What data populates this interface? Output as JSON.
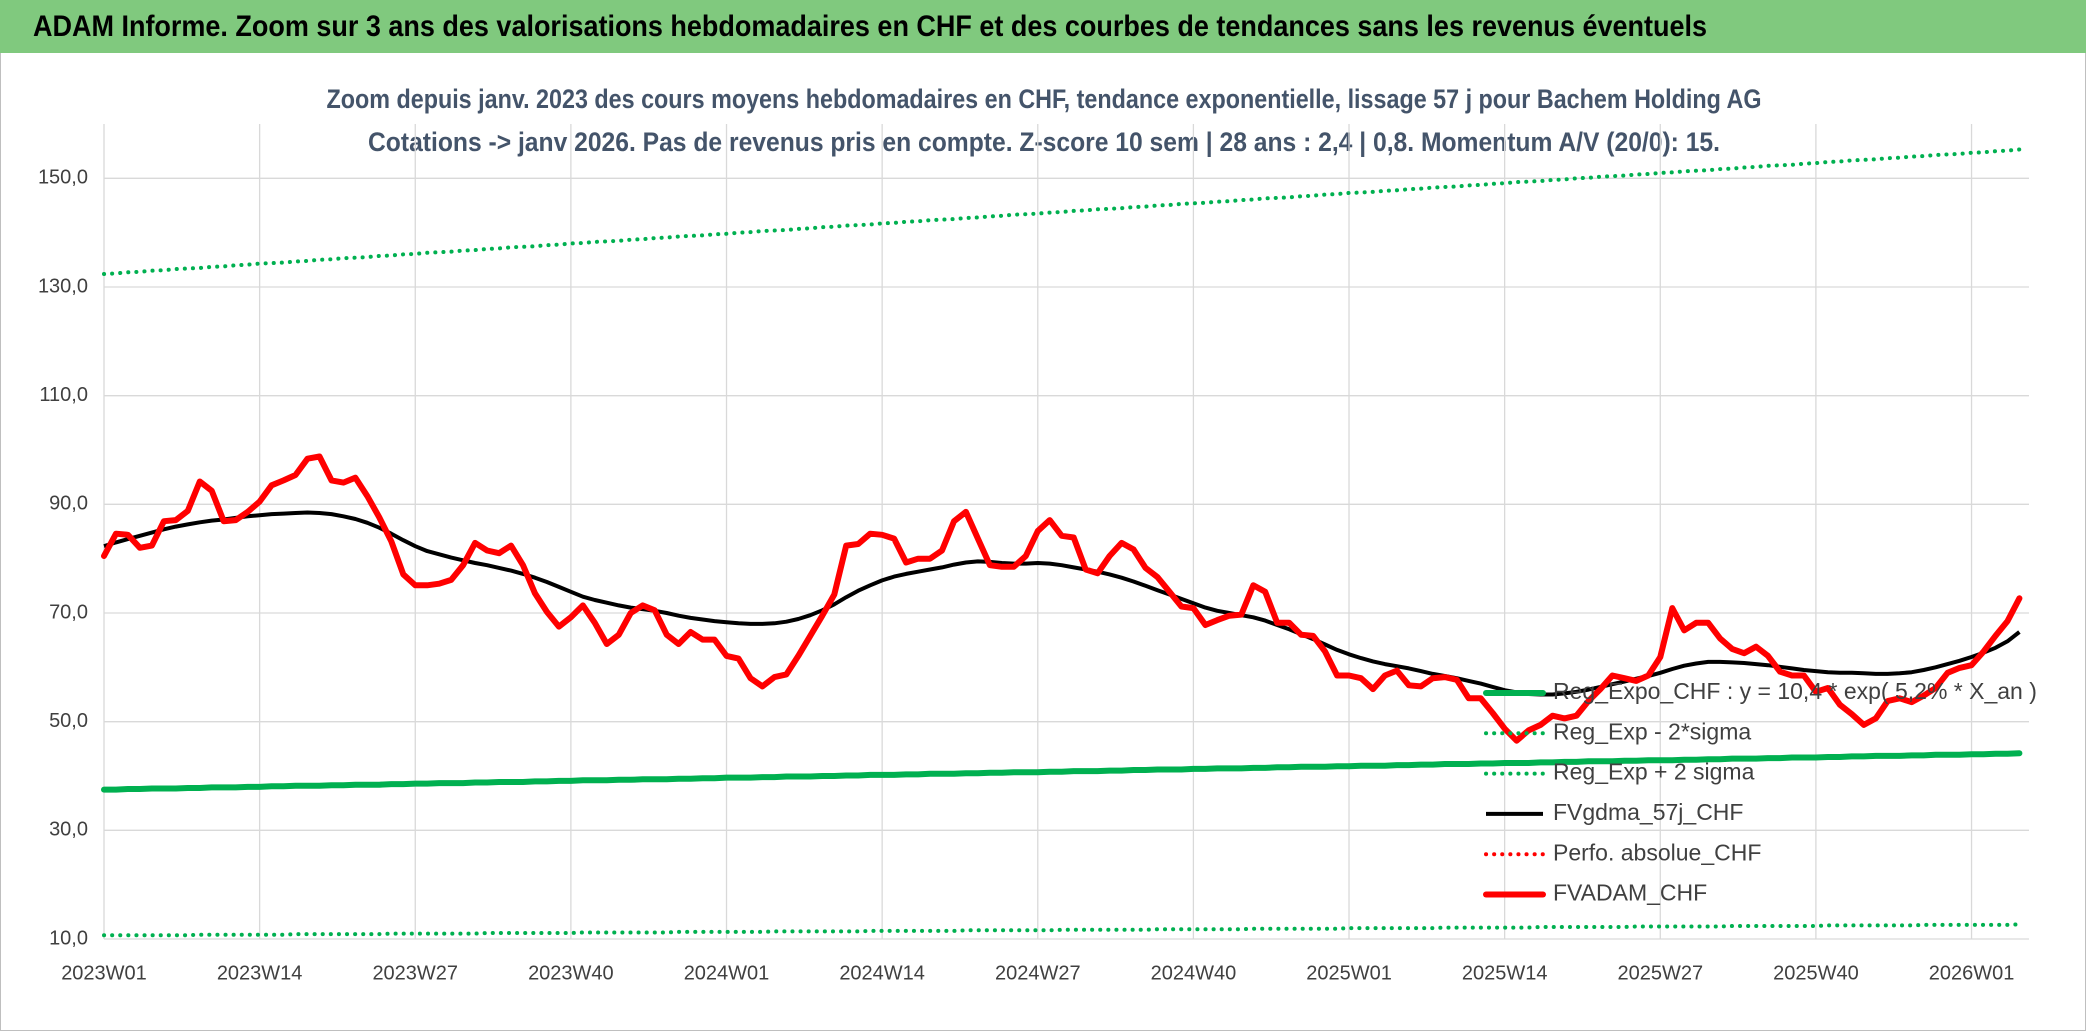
{
  "header": {
    "title": "ADAM Informe. Zoom sur 3 ans des valorisations hebdomadaires en CHF et des courbes de tendances sans les revenus éventuels"
  },
  "chart_data": {
    "type": "line",
    "title": [
      "Zoom depuis janv. 2023 des cours moyens hebdomadaires en CHF, tendance exponentielle, lissage 57 j pour Bachem Holding AG",
      "Cotations -> janv 2026. Pas de revenus pris en compte. Z-score 10 sem | 28 ans : 2,4 | 0,8. Momentum A/V (20/0): 15."
    ],
    "categories": [
      "2023W01",
      null,
      null,
      null,
      null,
      null,
      null,
      null,
      null,
      null,
      null,
      null,
      null,
      "2023W14",
      null,
      null,
      null,
      null,
      null,
      null,
      null,
      null,
      null,
      null,
      null,
      null,
      "2023W27",
      null,
      null,
      null,
      null,
      null,
      null,
      null,
      null,
      null,
      null,
      null,
      null,
      "2023W40",
      null,
      null,
      null,
      null,
      null,
      null,
      null,
      null,
      null,
      null,
      null,
      null,
      "2024W01",
      null,
      null,
      null,
      null,
      null,
      null,
      null,
      null,
      null,
      null,
      null,
      null,
      "2024W14",
      null,
      null,
      null,
      null,
      null,
      null,
      null,
      null,
      null,
      null,
      null,
      null,
      "2024W27",
      null,
      null,
      null,
      null,
      null,
      null,
      null,
      null,
      null,
      null,
      null,
      null,
      "2024W40",
      null,
      null,
      null,
      null,
      null,
      null,
      null,
      null,
      null,
      null,
      null,
      null,
      "2025W01",
      null,
      null,
      null,
      null,
      null,
      null,
      null,
      null,
      null,
      null,
      null,
      null,
      "2025W14",
      null,
      null,
      null,
      null,
      null,
      null,
      null,
      null,
      null,
      null,
      null,
      null,
      "2025W27",
      null,
      null,
      null,
      null,
      null,
      null,
      null,
      null,
      null,
      null,
      null,
      null,
      "2025W40",
      null,
      null,
      null,
      null,
      null,
      null,
      null,
      null,
      null,
      null,
      null,
      null,
      "2026W01",
      null,
      null,
      null,
      null
    ],
    "ylim": [
      10,
      160
    ],
    "yticks": [
      {
        "value": 10,
        "label": "10,0"
      },
      {
        "value": 30,
        "label": "30,0"
      },
      {
        "value": 50,
        "label": "50,0"
      },
      {
        "value": 70,
        "label": "70,0"
      },
      {
        "value": 90,
        "label": "90,0"
      },
      {
        "value": 110,
        "label": "110,0"
      },
      {
        "value": 130,
        "label": "130,0"
      },
      {
        "value": 150,
        "label": "150,0"
      }
    ],
    "grid": true,
    "legend": "lower right",
    "series": [
      {
        "name": "Reg_Expo_CHF : y = 10,4 * exp( 5,2% * X_an )",
        "color": "#00b050",
        "style": "thick",
        "values": [
          37.5,
          37.5,
          37.6,
          37.6,
          37.7,
          37.7,
          37.7,
          37.8,
          37.8,
          37.9,
          37.9,
          37.9,
          38.0,
          38.0,
          38.1,
          38.1,
          38.2,
          38.2,
          38.2,
          38.3,
          38.3,
          38.4,
          38.4,
          38.4,
          38.5,
          38.5,
          38.6,
          38.6,
          38.7,
          38.7,
          38.7,
          38.8,
          38.8,
          38.9,
          38.9,
          38.9,
          39.0,
          39.0,
          39.1,
          39.1,
          39.2,
          39.2,
          39.2,
          39.3,
          39.3,
          39.4,
          39.4,
          39.4,
          39.5,
          39.5,
          39.6,
          39.6,
          39.7,
          39.7,
          39.7,
          39.8,
          39.8,
          39.9,
          39.9,
          39.9,
          40.0,
          40.0,
          40.1,
          40.1,
          40.2,
          40.2,
          40.2,
          40.3,
          40.3,
          40.4,
          40.4,
          40.4,
          40.5,
          40.5,
          40.6,
          40.6,
          40.7,
          40.7,
          40.7,
          40.8,
          40.8,
          40.9,
          40.9,
          40.9,
          41.0,
          41.0,
          41.1,
          41.1,
          41.2,
          41.2,
          41.2,
          41.3,
          41.3,
          41.4,
          41.4,
          41.4,
          41.5,
          41.5,
          41.6,
          41.6,
          41.7,
          41.7,
          41.7,
          41.8,
          41.8,
          41.9,
          41.9,
          41.9,
          42.0,
          42.0,
          42.1,
          42.1,
          42.2,
          42.2,
          42.2,
          42.3,
          42.3,
          42.4,
          42.4,
          42.4,
          42.5,
          42.5,
          42.6,
          42.6,
          42.7,
          42.7,
          42.7,
          42.8,
          42.8,
          42.9,
          42.9,
          42.9,
          43.0,
          43.0,
          43.1,
          43.1,
          43.2,
          43.2,
          43.2,
          43.3,
          43.3,
          43.4,
          43.4,
          43.4,
          43.5,
          43.5,
          43.6,
          43.6,
          43.7,
          43.7,
          43.7,
          43.8,
          43.8,
          43.9,
          43.9,
          43.9,
          44.0,
          44.0,
          44.1,
          44.1,
          44.2
        ]
      },
      {
        "name": "Reg_Exp - 2*sigma",
        "color": "#00b050",
        "style": "dotted",
        "values": [
          10.7,
          10.7,
          10.7,
          10.7,
          10.7,
          10.7,
          10.7,
          10.7,
          10.8,
          10.8,
          10.8,
          10.8,
          10.8,
          10.8,
          10.8,
          10.8,
          10.9,
          10.9,
          10.9,
          10.9,
          10.9,
          10.9,
          10.9,
          10.9,
          11.0,
          11.0,
          11.0,
          11.0,
          11.0,
          11.0,
          11.0,
          11.0,
          11.1,
          11.1,
          11.1,
          11.1,
          11.1,
          11.1,
          11.1,
          11.1,
          11.2,
          11.2,
          11.2,
          11.2,
          11.2,
          11.2,
          11.2,
          11.2,
          11.3,
          11.3,
          11.3,
          11.3,
          11.3,
          11.3,
          11.3,
          11.3,
          11.4,
          11.4,
          11.4,
          11.4,
          11.4,
          11.4,
          11.4,
          11.4,
          11.5,
          11.5,
          11.5,
          11.5,
          11.5,
          11.5,
          11.5,
          11.5,
          11.6,
          11.6,
          11.6,
          11.6,
          11.6,
          11.6,
          11.6,
          11.6,
          11.7,
          11.7,
          11.7,
          11.7,
          11.7,
          11.7,
          11.7,
          11.7,
          11.8,
          11.8,
          11.8,
          11.8,
          11.8,
          11.8,
          11.8,
          11.8,
          11.9,
          11.9,
          11.9,
          11.9,
          11.9,
          11.9,
          11.9,
          11.9,
          12.0,
          12.0,
          12.0,
          12.0,
          12.0,
          12.0,
          12.0,
          12.0,
          12.1,
          12.1,
          12.1,
          12.1,
          12.1,
          12.1,
          12.1,
          12.1,
          12.2,
          12.2,
          12.2,
          12.2,
          12.2,
          12.2,
          12.2,
          12.2,
          12.3,
          12.3,
          12.3,
          12.3,
          12.3,
          12.3,
          12.3,
          12.3,
          12.4,
          12.4,
          12.4,
          12.4,
          12.4,
          12.4,
          12.4,
          12.4,
          12.5,
          12.5,
          12.5,
          12.5,
          12.5,
          12.5,
          12.5,
          12.5,
          12.6,
          12.6,
          12.6,
          12.6,
          12.6,
          12.6,
          12.6,
          12.6,
          12.7
        ]
      },
      {
        "name": "Reg_Exp + 2 sigma",
        "color": "#00b050",
        "style": "dotted",
        "values": [
          132.4,
          132.5,
          132.7,
          132.8,
          133.0,
          133.1,
          133.3,
          133.4,
          133.5,
          133.7,
          133.8,
          134.0,
          134.1,
          134.3,
          134.4,
          134.5,
          134.7,
          134.8,
          135.0,
          135.1,
          135.3,
          135.4,
          135.5,
          135.7,
          135.8,
          136.0,
          136.1,
          136.3,
          136.4,
          136.5,
          136.7,
          136.8,
          137.0,
          137.1,
          137.3,
          137.4,
          137.5,
          137.7,
          137.8,
          138.0,
          138.1,
          138.3,
          138.4,
          138.5,
          138.7,
          138.8,
          139.0,
          139.1,
          139.3,
          139.4,
          139.5,
          139.7,
          139.8,
          140.0,
          140.1,
          140.3,
          140.4,
          140.5,
          140.7,
          140.8,
          141.0,
          141.1,
          141.3,
          141.4,
          141.5,
          141.7,
          141.8,
          142.0,
          142.1,
          142.3,
          142.4,
          142.5,
          142.7,
          142.8,
          143.0,
          143.1,
          143.3,
          143.4,
          143.5,
          143.7,
          143.8,
          144.0,
          144.1,
          144.3,
          144.4,
          144.5,
          144.7,
          144.8,
          145.0,
          145.1,
          145.3,
          145.4,
          145.5,
          145.7,
          145.8,
          146.0,
          146.1,
          146.3,
          146.4,
          146.5,
          146.7,
          146.8,
          147.0,
          147.1,
          147.3,
          147.4,
          147.5,
          147.7,
          147.8,
          148.0,
          148.1,
          148.3,
          148.4,
          148.5,
          148.7,
          148.8,
          149.0,
          149.1,
          149.3,
          149.4,
          149.5,
          149.7,
          149.8,
          150.0,
          150.1,
          150.3,
          150.4,
          150.5,
          150.7,
          150.8,
          151.0,
          151.1,
          151.3,
          151.4,
          151.5,
          151.7,
          151.8,
          152.0,
          152.1,
          152.3,
          152.4,
          152.5,
          152.7,
          152.8,
          153.0,
          153.1,
          153.3,
          153.4,
          153.5,
          153.7,
          153.8,
          154.0,
          154.1,
          154.3,
          154.4,
          154.5,
          154.7,
          154.8,
          155.0,
          155.1,
          155.3
        ]
      },
      {
        "name": "FVgdma_57j_CHF",
        "color": "#000000",
        "style": "solid",
        "values": [
          82.3,
          83.0,
          83.6,
          84.2,
          84.8,
          85.4,
          85.9,
          86.3,
          86.7,
          87.0,
          87.2,
          87.5,
          87.8,
          88.0,
          88.2,
          88.3,
          88.4,
          88.5,
          88.4,
          88.2,
          87.8,
          87.3,
          86.6,
          85.7,
          84.6,
          83.4,
          82.3,
          81.4,
          80.8,
          80.2,
          79.7,
          79.2,
          78.8,
          78.3,
          77.8,
          77.2,
          76.5,
          75.7,
          74.8,
          73.9,
          73.0,
          72.4,
          71.9,
          71.4,
          71.0,
          70.7,
          70.4,
          70.0,
          69.5,
          69.1,
          68.8,
          68.5,
          68.3,
          68.1,
          68.0,
          68.0,
          68.1,
          68.4,
          68.9,
          69.6,
          70.5,
          71.6,
          72.9,
          74.1,
          75.1,
          76.0,
          76.7,
          77.2,
          77.6,
          78.0,
          78.4,
          78.9,
          79.3,
          79.5,
          79.4,
          79.2,
          79.1,
          79.1,
          79.2,
          79.1,
          78.8,
          78.4,
          78.0,
          77.6,
          77.1,
          76.5,
          75.8,
          75.0,
          74.2,
          73.4,
          72.6,
          71.8,
          71.0,
          70.4,
          70.0,
          69.6,
          69.2,
          68.6,
          67.8,
          67.0,
          66.1,
          65.2,
          64.2,
          63.2,
          62.4,
          61.7,
          61.1,
          60.6,
          60.2,
          59.8,
          59.3,
          58.8,
          58.4,
          58.0,
          57.5,
          57.0,
          56.4,
          55.8,
          55.4,
          55.1,
          55.0,
          55.0,
          55.2,
          55.5,
          55.9,
          56.4,
          56.9,
          57.4,
          57.9,
          58.4,
          59.0,
          59.7,
          60.3,
          60.7,
          61.0,
          61.0,
          60.9,
          60.8,
          60.6,
          60.4,
          60.1,
          59.8,
          59.5,
          59.3,
          59.1,
          59.0,
          59.0,
          58.9,
          58.8,
          58.8,
          58.9,
          59.1,
          59.5,
          60.0,
          60.6,
          61.2,
          61.9,
          62.7,
          63.6,
          64.8,
          66.5
        ]
      },
      {
        "name": "Perfo. absolue_CHF",
        "color": "#ff0000",
        "style": "dotted"
      },
      {
        "name": "FVADAM_CHF",
        "color": "#ff0000",
        "style": "thick",
        "values": [
          80.5,
          84.6,
          84.4,
          82.0,
          82.4,
          86.9,
          87.1,
          88.8,
          94.2,
          92.5,
          86.9,
          87.1,
          88.6,
          90.5,
          93.5,
          94.4,
          95.4,
          98.4,
          98.8,
          94.4,
          94.0,
          94.9,
          91.5,
          87.6,
          83.2,
          77.1,
          75.1,
          75.1,
          75.4,
          76.1,
          78.8,
          82.9,
          81.5,
          81.0,
          82.4,
          78.8,
          73.6,
          70.2,
          67.5,
          69.2,
          71.4,
          68.2,
          64.3,
          66.0,
          70.0,
          71.4,
          70.5,
          66.0,
          64.3,
          66.5,
          65.1,
          65.1,
          62.1,
          61.6,
          58.0,
          56.5,
          58.2,
          58.7,
          62.1,
          65.8,
          69.5,
          73.4,
          82.4,
          82.7,
          84.6,
          84.4,
          83.7,
          79.3,
          80.0,
          80.0,
          81.5,
          86.9,
          88.6,
          83.7,
          78.8,
          78.5,
          78.5,
          80.5,
          85.1,
          87.1,
          84.2,
          83.9,
          78.0,
          77.3,
          80.5,
          82.9,
          81.7,
          78.3,
          76.6,
          73.9,
          71.2,
          70.9,
          67.8,
          68.7,
          69.5,
          69.7,
          75.1,
          73.9,
          68.2,
          68.2,
          66.0,
          65.8,
          62.9,
          58.5,
          58.5,
          58.0,
          56.0,
          58.5,
          59.4,
          56.7,
          56.5,
          58.0,
          58.2,
          57.7,
          54.3,
          54.3,
          51.6,
          48.7,
          46.5,
          48.4,
          49.4,
          51.1,
          50.6,
          51.1,
          53.8,
          56.0,
          58.5,
          58.0,
          57.5,
          58.5,
          61.9,
          70.9,
          66.8,
          68.2,
          68.2,
          65.3,
          63.4,
          62.6,
          63.8,
          62.1,
          59.2,
          58.5,
          58.5,
          55.5,
          56.2,
          53.1,
          51.4,
          49.4,
          50.6,
          53.8,
          54.3,
          53.6,
          54.8,
          56.2,
          59.0,
          59.9,
          60.4,
          62.9,
          65.8,
          68.5,
          72.7
        ]
      }
    ]
  }
}
